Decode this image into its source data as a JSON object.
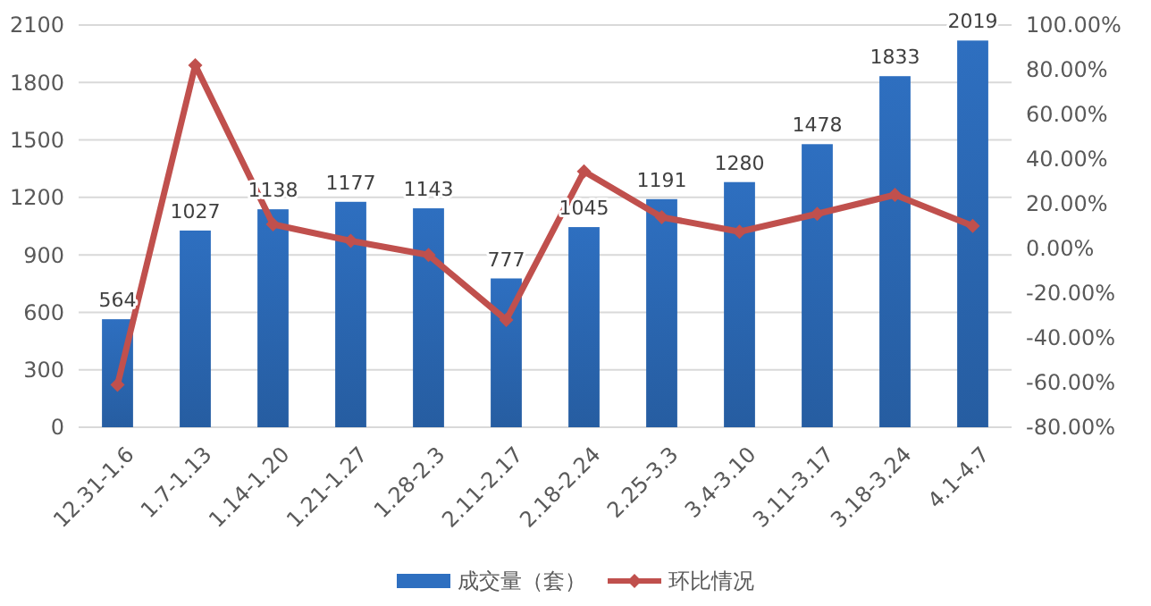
{
  "chart_data": {
    "type": "bar",
    "categories": [
      "12.31-1.6",
      "1.7-1.13",
      "1.14-1.20",
      "1.21-1.27",
      "1.28-2.3",
      "2.11-2.17",
      "2.18-2.24",
      "2.25-3.3",
      "3.4-3.10",
      "3.11-3.17",
      "3.18-3.24",
      "4.1-4.7"
    ],
    "series": [
      {
        "name": "成交量（套）",
        "color": "#2e6fc0",
        "values": [
          564,
          1027,
          1138,
          1177,
          1143,
          777,
          1045,
          1191,
          1280,
          1478,
          1833,
          2019
        ],
        "value_labels": [
          "564",
          "1027",
          "1138",
          "1177",
          "1143",
          "777",
          "1045",
          "1191",
          "1280",
          "1478",
          "1833",
          "2019"
        ]
      },
      {
        "name": "环比情况",
        "type": "line",
        "axis": "y2",
        "color": "#c0504d",
        "values": [
          -61,
          82,
          10.8,
          3.4,
          -2.9,
          -32,
          34.5,
          14,
          7.5,
          15.5,
          24,
          10.1
        ]
      }
    ],
    "ylim": [
      0,
      2100
    ],
    "yticks": [
      0,
      300,
      600,
      900,
      1200,
      1500,
      1800,
      2100
    ],
    "y2lim": [
      -80,
      100
    ],
    "y2ticks": [
      {
        "value": -80,
        "label": "-80.00%"
      },
      {
        "value": -60,
        "label": "-60.00%"
      },
      {
        "value": -40,
        "label": "-40.00%"
      },
      {
        "value": -20,
        "label": "-20.00%"
      },
      {
        "value": 0,
        "label": "0.00%"
      },
      {
        "value": 20,
        "label": "20.00%"
      },
      {
        "value": 40,
        "label": "40.00%"
      },
      {
        "value": 60,
        "label": "60.00%"
      },
      {
        "value": 80,
        "label": "80.00%"
      },
      {
        "value": 100,
        "label": "100.00%"
      }
    ],
    "grid": "y",
    "legend": "bottom",
    "marker": "diamond",
    "line_style": "solid"
  }
}
